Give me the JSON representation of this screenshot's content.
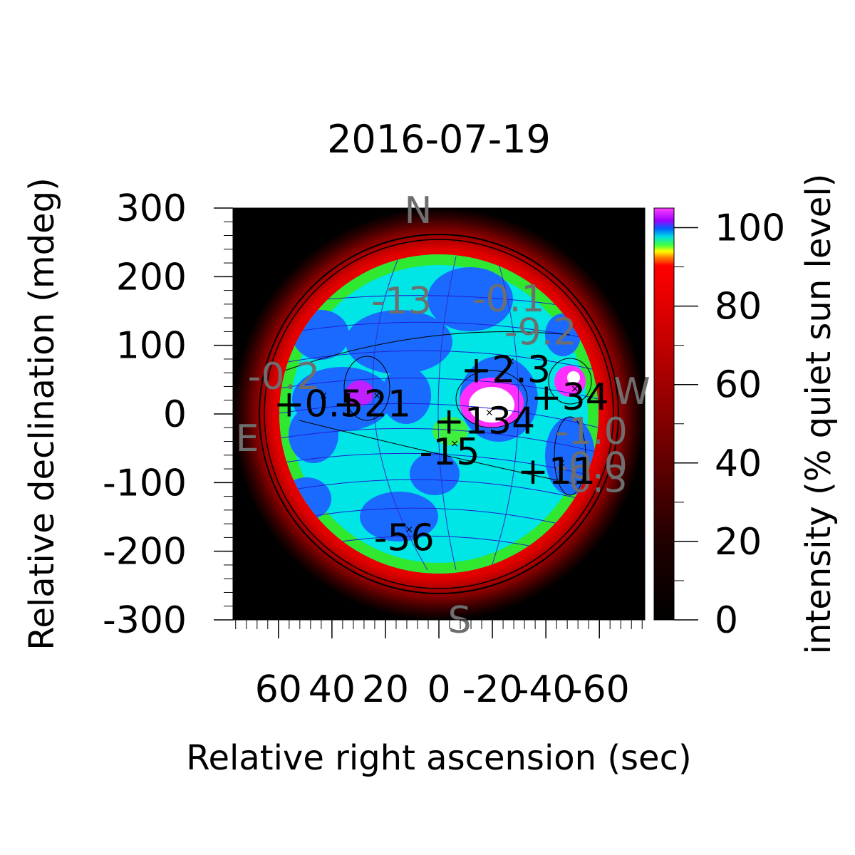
{
  "chart_data": {
    "type": "heatmap",
    "title": "2016-07-19",
    "xlabel": "Relative right ascension (sec)",
    "ylabel": "Relative declination (mdeg)",
    "colorbar_label": "intensity (% quiet sun level)",
    "x_ticks": [
      60,
      40,
      20,
      0,
      -20,
      -40,
      -60
    ],
    "y_ticks": [
      300,
      200,
      100,
      0,
      -100,
      -200,
      -300
    ],
    "colorbar_ticks": [
      0,
      20,
      40,
      60,
      80,
      100
    ],
    "xlim": [
      77,
      -77
    ],
    "ylim": [
      -300,
      300
    ],
    "colorbar_range": [
      0,
      105
    ],
    "compass": {
      "north": "N",
      "south": "S",
      "east": "E",
      "west": "W"
    },
    "annotations_black": [
      {
        "text": "+2.3",
        "x": -25,
        "y": 65
      },
      {
        "text": "+34",
        "x": -49,
        "y": 25
      },
      {
        "text": "+0.5",
        "x": 45,
        "y": 15
      },
      {
        "text": "+21",
        "x": 25,
        "y": 15
      },
      {
        "text": "+134",
        "x": -17,
        "y": -10
      },
      {
        "text": "-15",
        "x": -4,
        "y": -55
      },
      {
        "text": "+11",
        "x": -44,
        "y": -83
      },
      {
        "text": "-56",
        "x": 13,
        "y": -180
      }
    ],
    "annotations_gray": [
      {
        "text": "-13",
        "x": 14,
        "y": 165
      },
      {
        "text": "-0.1",
        "x": -26,
        "y": 168
      },
      {
        "text": "-9.2",
        "x": -38,
        "y": 120
      },
      {
        "text": "-0.2",
        "x": 58,
        "y": 55
      },
      {
        "text": "-1.0",
        "x": -57,
        "y": -25
      },
      {
        "text": "-0.0",
        "x": -57,
        "y": -75
      },
      {
        "text": "-0.3",
        "x": -57,
        "y": -95
      }
    ]
  }
}
